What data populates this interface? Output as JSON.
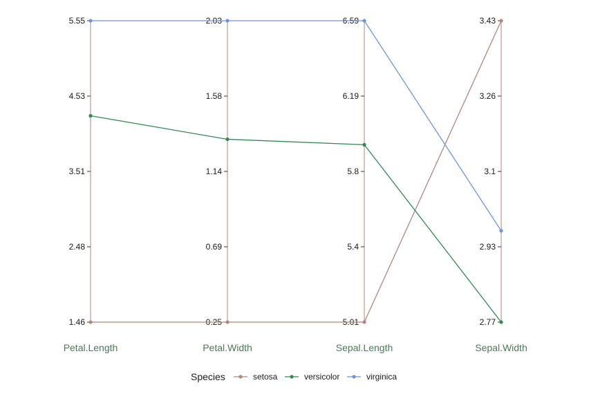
{
  "chart_data": {
    "type": "parallel-coordinates",
    "axes": [
      {
        "name": "Petal.Length",
        "ticks": [
          "1.46",
          "2.48",
          "3.51",
          "4.53",
          "5.55"
        ],
        "range": [
          1.46,
          5.55
        ]
      },
      {
        "name": "Petal.Width",
        "ticks": [
          "0.25",
          "0.69",
          "1.14",
          "1.58",
          "2.03"
        ],
        "range": [
          0.25,
          2.03
        ]
      },
      {
        "name": "Sepal.Length",
        "ticks": [
          "5.01",
          "5.4",
          "5.8",
          "6.19",
          "6.59"
        ],
        "range": [
          5.01,
          6.59
        ]
      },
      {
        "name": "Sepal.Width",
        "ticks": [
          "2.77",
          "2.93",
          "3.1",
          "3.26",
          "3.43"
        ],
        "range": [
          2.77,
          3.43
        ]
      }
    ],
    "series": [
      {
        "name": "setosa",
        "color": "#b5857a",
        "values": [
          1.46,
          0.25,
          5.01,
          3.43
        ]
      },
      {
        "name": "versicolor",
        "color": "#2e8b4f",
        "values": [
          4.26,
          1.33,
          5.94,
          2.77
        ]
      },
      {
        "name": "virginica",
        "color": "#6e95dc",
        "values": [
          5.55,
          2.03,
          6.59,
          2.97
        ]
      }
    ],
    "legend": {
      "title": "Species",
      "position": "bottom"
    },
    "axis_line_color": "#b5857a",
    "axis_title_color": "#4a7a57",
    "grid": false
  }
}
